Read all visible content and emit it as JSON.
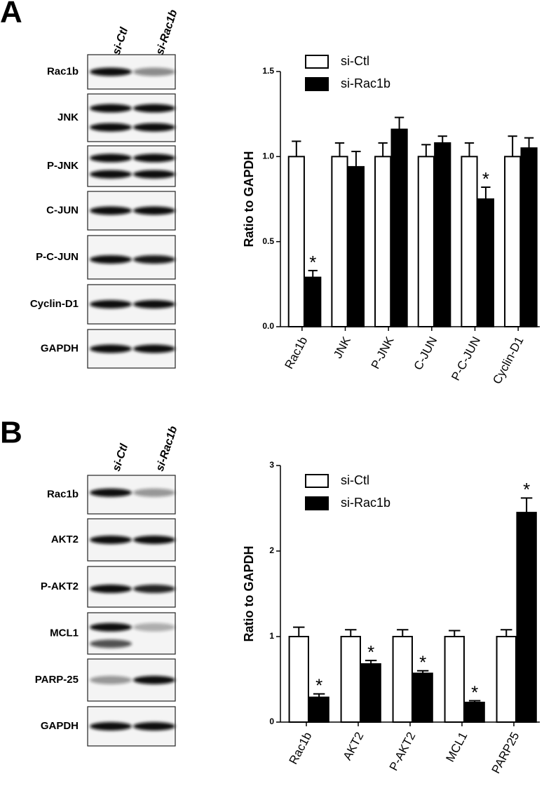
{
  "figure": {
    "panels": [
      {
        "label": "A",
        "lanes": [
          "si-Ctl",
          "si-Rac1b"
        ],
        "rows": [
          "Rac1b",
          "JNK",
          "P-JNK",
          "C-JUN",
          "P-C-JUN",
          "Cyclin-D1",
          "GAPDH"
        ]
      },
      {
        "label": "B",
        "lanes": [
          "si-Ctl",
          "si-Rac1b"
        ],
        "rows": [
          "Rac1b",
          "AKT2",
          "P-AKT2",
          "MCL1",
          "PARP-25",
          "GAPDH"
        ]
      }
    ]
  },
  "chart_data": [
    {
      "type": "bar",
      "ylabel": "Ratio to GAPDH",
      "categories": [
        "Rac1b",
        "JNK",
        "P-JNK",
        "C-JUN",
        "P-C-JUN",
        "Cyclin-D1"
      ],
      "series": [
        {
          "name": "si-Ctl",
          "color": "#ffffff",
          "values": [
            1,
            1,
            1,
            1,
            1,
            1
          ],
          "errors": [
            0.09,
            0.08,
            0.08,
            0.07,
            0.08,
            0.12
          ],
          "significance": [
            null,
            null,
            null,
            null,
            null,
            null
          ]
        },
        {
          "name": "si-Rac1b",
          "color": "#000000",
          "values": [
            0.29,
            0.94,
            1.16,
            1.08,
            0.75,
            1.05
          ],
          "errors": [
            0.04,
            0.09,
            0.07,
            0.04,
            0.07,
            0.06
          ],
          "significance": [
            "*",
            null,
            null,
            null,
            "*",
            null
          ]
        }
      ],
      "ylim": [
        0,
        1.5
      ],
      "yticks": [
        {
          "value": 0,
          "label": "0.0"
        },
        {
          "value": 0.5,
          "label": "0.5"
        },
        {
          "value": 1,
          "label": "1.0"
        },
        {
          "value": 1.5,
          "label": "1.5"
        }
      ],
      "legend": "upper left"
    },
    {
      "type": "bar",
      "ylabel": "Ratio to GAPDH",
      "categories": [
        "Rac1b",
        "AKT2",
        "P-AKT2",
        "MCL1",
        "PARP25"
      ],
      "series": [
        {
          "name": "si-Ctl",
          "color": "#ffffff",
          "values": [
            1,
            1,
            1,
            1,
            1
          ],
          "errors": [
            0.11,
            0.08,
            0.08,
            0.07,
            0.08
          ],
          "significance": [
            null,
            null,
            null,
            null,
            null
          ]
        },
        {
          "name": "si-Rac1b",
          "color": "#000000",
          "values": [
            0.29,
            0.68,
            0.57,
            0.23,
            2.45
          ],
          "errors": [
            0.04,
            0.04,
            0.03,
            0.02,
            0.17
          ],
          "significance": [
            "*",
            "*",
            "*",
            "*",
            "*"
          ]
        }
      ],
      "ylim": [
        0,
        3
      ],
      "yticks": [
        0,
        1,
        2,
        3
      ],
      "legend": "upper left"
    }
  ]
}
